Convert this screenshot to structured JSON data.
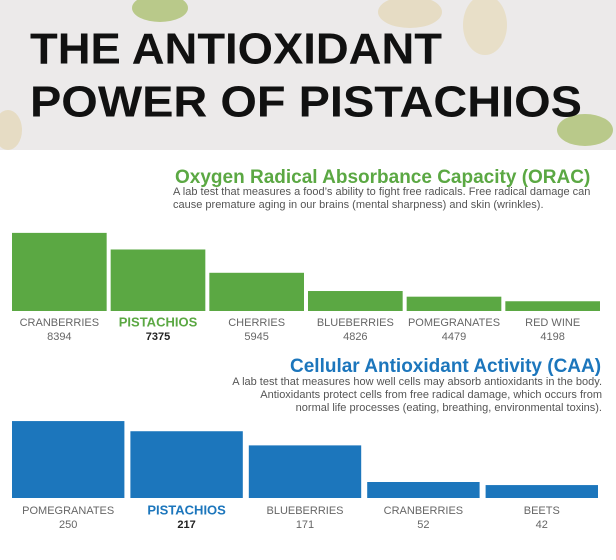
{
  "title": [
    "THE ANTIOXIDANT",
    "POWER OF PISTACHIOS"
  ],
  "chart_data": [
    {
      "type": "bar",
      "title": "Oxygen Radical Absorbance Capacity (ORAC)",
      "description": [
        "A lab test that measures a food’s ability to fight free radicals. Free radical damage can",
        "cause premature aging in our brains (mental sharpness) and skin (wrinkles)."
      ],
      "categories": [
        "CRANBERRIES",
        "PISTACHIOS",
        "CHERRIES",
        "BLUEBERRIES",
        "POMEGRANATES",
        "RED WINE"
      ],
      "values": [
        8394,
        7375,
        5945,
        4826,
        4479,
        4198
      ],
      "color": "#5ba843",
      "highlight": 1,
      "ylim": [
        3600,
        9000
      ]
    },
    {
      "type": "bar",
      "title": "Cellular Antioxidant Activity (CAA)",
      "description": [
        "A lab test that measures how well cells may absorb antioxidants in the body.",
        "Antioxidants protect cells from free radical damage, which occurs from",
        "normal life processes (eating, breathing, environmental toxins)."
      ],
      "categories": [
        "POMEGRANATES",
        "PISTACHIOS",
        "BLUEBERRIES",
        "CRANBERRIES",
        "BEETS"
      ],
      "values": [
        250,
        217,
        171,
        52,
        42
      ],
      "color": "#1c76bc",
      "highlight": 1,
      "ylim": [
        0,
        260
      ]
    }
  ]
}
